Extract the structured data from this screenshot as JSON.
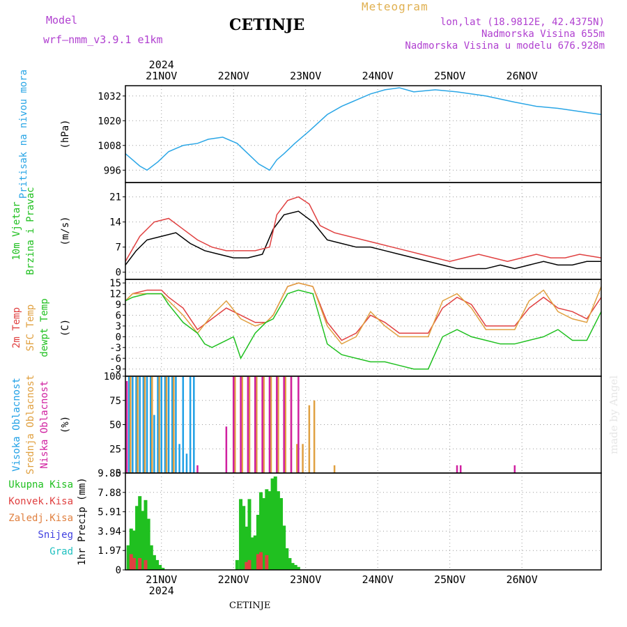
{
  "header": {
    "title": "CETINJE",
    "model_label": "Model",
    "model_name": "wrf—nmm_v3.9.1 e1km",
    "meteogram": "Meteogram",
    "lonlat": "lon,lat (18.9812E, 42.4375N)",
    "altitude": "Nadmorska Visina 655m",
    "model_altitude": "Nadmorska Visina u modelu 676.928m",
    "footer": "CETINJE",
    "signature": "made by Angel"
  },
  "colors": {
    "pressure": "#2aa6e6",
    "wind_speed": "#000000",
    "gust": "#e04040",
    "t2m": "#e04040",
    "sfc": "#e0a040",
    "dew": "#20c020",
    "high_cloud": "#20a0e6",
    "mid_cloud": "#e0a040",
    "low_cloud": "#d020a0",
    "precip_total": "#20c020",
    "precip_conv": "#e04040",
    "label_purple": "#b040d0"
  },
  "chart_data": {
    "type": "meteogram",
    "time_axis": {
      "year": "2024",
      "ticks": [
        "21NOV",
        "22NOV",
        "23NOV",
        "24NOV",
        "25NOV",
        "26NOV"
      ],
      "start_hour": 0,
      "end_hour": 6.6,
      "step_hours": 1
    },
    "panels": [
      {
        "id": "pressure",
        "type": "line",
        "ylabels": [
          {
            "text": "Pritisak na nivou mora",
            "color": "#2aa6e6"
          }
        ],
        "unit": "(hPa)",
        "ylim": [
          990,
          1037
        ],
        "yticks": [
          996,
          1008,
          1020,
          1032
        ],
        "series": [
          {
            "color": "#2aa6e6",
            "x": [
              0,
              0.1,
              0.2,
              0.3,
              0.45,
              0.6,
              0.8,
              1.0,
              1.15,
              1.35,
              1.55,
              1.7,
              1.85,
              2.0,
              2.1,
              2.2,
              2.35,
              2.55,
              2.8,
              3.0,
              3.2,
              3.4,
              3.6,
              3.8,
              4.0,
              4.3,
              4.6,
              5.0,
              5.4,
              5.7,
              6.0,
              6.2,
              6.4,
              6.6
            ],
            "y": [
              1004,
              1001,
              998,
              996,
              1000,
              1005,
              1008,
              1009,
              1011,
              1012,
              1009,
              1004,
              999,
              996,
              1001,
              1004,
              1009,
              1015,
              1023,
              1027,
              1030,
              1033,
              1035,
              1036,
              1034,
              1035,
              1034,
              1032,
              1029,
              1027,
              1026,
              1025,
              1024,
              1023
            ]
          }
        ]
      },
      {
        "id": "wind",
        "type": "line",
        "ylabels": [
          {
            "text": "10m Vjetar",
            "color": "#20c020"
          },
          {
            "text": "Brzina i Pravac",
            "color": "#20c020"
          }
        ],
        "unit": "(m/s)",
        "ylim": [
          -2,
          25
        ],
        "yticks": [
          0,
          7,
          14,
          21
        ],
        "series": [
          {
            "name": "speed",
            "color": "#000000",
            "x": [
              0,
              0.15,
              0.3,
              0.5,
              0.7,
              0.9,
              1.1,
              1.3,
              1.5,
              1.7,
              1.9,
              2.05,
              2.2,
              2.4,
              2.6,
              2.8,
              3.0,
              3.2,
              3.4,
              3.6,
              3.8,
              4.0,
              4.2,
              4.4,
              4.6,
              4.8,
              5.0,
              5.2,
              5.4,
              5.6,
              5.8,
              6.0,
              6.2,
              6.4,
              6.6
            ],
            "y": [
              2,
              6,
              9,
              10,
              11,
              8,
              6,
              5,
              4,
              4,
              5,
              12,
              16,
              17,
              14,
              9,
              8,
              7,
              7,
              6,
              5,
              4,
              3,
              2,
              1,
              1,
              1,
              2,
              1,
              2,
              3,
              2,
              2,
              3,
              3
            ]
          },
          {
            "name": "gust",
            "color": "#e04040",
            "x": [
              0,
              0.2,
              0.4,
              0.6,
              0.8,
              1.0,
              1.2,
              1.4,
              1.6,
              1.8,
              2.0,
              2.1,
              2.25,
              2.4,
              2.55,
              2.7,
              2.9,
              3.1,
              3.3,
              3.5,
              3.7,
              3.9,
              4.1,
              4.3,
              4.5,
              4.7,
              4.9,
              5.1,
              5.3,
              5.5,
              5.7,
              5.9,
              6.1,
              6.3,
              6.6
            ],
            "y": [
              3,
              10,
              14,
              15,
              12,
              9,
              7,
              6,
              6,
              6,
              7,
              16,
              20,
              21,
              19,
              13,
              11,
              10,
              9,
              8,
              7,
              6,
              5,
              4,
              3,
              4,
              5,
              4,
              3,
              4,
              5,
              4,
              4,
              5,
              4
            ]
          }
        ]
      },
      {
        "id": "temp",
        "type": "line",
        "ylabels": [
          {
            "text": "2m Temp",
            "color": "#e04040"
          },
          {
            "text": "SFC Temp",
            "color": "#e0a040"
          },
          {
            "text": "dewpt Temp",
            "color": "#20c020"
          }
        ],
        "unit": "(C)",
        "ylim": [
          -11,
          16
        ],
        "yticks": [
          -9,
          -6,
          -3,
          0,
          3,
          6,
          9,
          12,
          15
        ],
        "series": [
          {
            "name": "2m Temp",
            "color": "#e04040",
            "x": [
              0,
              0.1,
              0.3,
              0.5,
              0.6,
              0.8,
              1.0,
              1.2,
              1.4,
              1.6,
              1.8,
              1.95,
              2.05,
              2.25,
              2.4,
              2.6,
              2.8,
              3.0,
              3.2,
              3.4,
              3.6,
              3.8,
              4.0,
              4.2,
              4.4,
              4.6,
              4.8,
              5.0,
              5.2,
              5.4,
              5.6,
              5.8,
              6.0,
              6.2,
              6.4,
              6.6
            ],
            "y": [
              10,
              12,
              13,
              13,
              11,
              8,
              2,
              5,
              8,
              6,
              4,
              4,
              6,
              14,
              15,
              14,
              4,
              -1,
              1,
              6,
              4,
              1,
              1,
              1,
              8,
              11,
              9,
              3,
              3,
              3,
              8,
              11,
              8,
              7,
              5,
              11
            ]
          },
          {
            "name": "SFC Temp",
            "color": "#e0a040",
            "x": [
              0,
              0.1,
              0.3,
              0.5,
              0.6,
              0.8,
              1.0,
              1.2,
              1.4,
              1.6,
              1.8,
              1.95,
              2.05,
              2.25,
              2.4,
              2.6,
              2.8,
              3.0,
              3.2,
              3.4,
              3.6,
              3.8,
              4.0,
              4.2,
              4.4,
              4.6,
              4.8,
              5.0,
              5.2,
              5.4,
              5.6,
              5.8,
              6.0,
              6.2,
              6.4,
              6.6
            ],
            "y": [
              10,
              12,
              12,
              12,
              10,
              6,
              1,
              6,
              10,
              5,
              3,
              4,
              6,
              14,
              15,
              14,
              3,
              -2,
              0,
              7,
              3,
              0,
              0,
              0,
              10,
              12,
              8,
              2,
              2,
              2,
              10,
              13,
              7,
              5,
              4,
              14
            ]
          },
          {
            "name": "dewpt Temp",
            "color": "#20c020",
            "x": [
              0,
              0.1,
              0.3,
              0.5,
              0.6,
              0.8,
              1.0,
              1.1,
              1.2,
              1.4,
              1.5,
              1.6,
              1.8,
              1.95,
              2.05,
              2.25,
              2.4,
              2.6,
              2.8,
              3.0,
              3.2,
              3.4,
              3.6,
              3.8,
              4.0,
              4.2,
              4.4,
              4.6,
              4.8,
              5.0,
              5.2,
              5.4,
              5.6,
              5.8,
              6.0,
              6.2,
              6.4,
              6.6
            ],
            "y": [
              10,
              11,
              12,
              12,
              9,
              4,
              1,
              -2,
              -3,
              -1,
              0,
              -6,
              1,
              4,
              5,
              12,
              13,
              12,
              -2,
              -5,
              -6,
              -7,
              -7,
              -8,
              -9,
              -9,
              0,
              2,
              0,
              -1,
              -2,
              -2,
              -1,
              0,
              2,
              -1,
              -1,
              7
            ]
          }
        ]
      },
      {
        "id": "cloud",
        "type": "bar",
        "ylabels": [
          {
            "text": "Visoka Oblacnost",
            "color": "#20a0e6"
          },
          {
            "text": "Srednja Oblacnost",
            "color": "#e0a040"
          },
          {
            "text": "Niska Oblacnost",
            "color": "#d020a0"
          }
        ],
        "unit": "(%)",
        "ylim": [
          0,
          100
        ],
        "yticks": [
          0,
          25,
          50,
          75,
          100
        ],
        "series": [
          {
            "name": "high",
            "color": "#20a0e6",
            "x": [
              0.05,
              0.1,
              0.15,
              0.2,
              0.25,
              0.3,
              0.35,
              0.4,
              0.45,
              0.5,
              0.55,
              0.6,
              0.65,
              0.7,
              0.75,
              0.8,
              0.85,
              0.9,
              0.95
            ],
            "y": [
              100,
              100,
              100,
              100,
              100,
              100,
              100,
              60,
              100,
              100,
              100,
              100,
              100,
              100,
              30,
              100,
              20,
              100,
              100
            ]
          },
          {
            "name": "mid",
            "color": "#e0a040",
            "x": [
              0.07,
              0.17,
              0.27,
              0.37,
              0.47,
              0.57,
              0.67,
              1.52,
              1.62,
              1.72,
              1.82,
              1.92,
              2.02,
              2.12,
              2.22,
              2.3,
              2.38,
              2.46,
              2.55,
              2.62,
              2.9
            ],
            "y": [
              100,
              100,
              100,
              100,
              100,
              100,
              100,
              100,
              100,
              100,
              100,
              100,
              100,
              100,
              100,
              100,
              30,
              30,
              70,
              75,
              8
            ]
          },
          {
            "name": "low",
            "color": "#d020a0",
            "x": [
              0.02,
              1.0,
              1.4,
              1.5,
              1.6,
              1.7,
              1.8,
              1.9,
              2.0,
              2.1,
              2.2,
              2.3,
              2.4,
              4.6,
              4.65,
              5.4
            ],
            "y": [
              95,
              8,
              48,
              100,
              100,
              100,
              100,
              100,
              100,
              100,
              100,
              100,
              100,
              8,
              8,
              8
            ]
          }
        ]
      },
      {
        "id": "precip",
        "type": "bar",
        "ylabels_left": [
          {
            "text": "Ukupna Kisa",
            "color": "#20c020"
          },
          {
            "text": "Konvek.Kisa",
            "color": "#e04040"
          },
          {
            "text": "Zaledj.Kisa",
            "color": "#e08040"
          },
          {
            "text": "Snijeg",
            "color": "#4040e0"
          },
          {
            "text": "Grad",
            "color": "#20c0c0"
          }
        ],
        "unit": "1hr Precip (mm)",
        "ylim": [
          0,
          9.85
        ],
        "yticks": [
          0,
          1.97,
          3.94,
          5.91,
          7.88,
          9.85
        ],
        "series": [
          {
            "name": "total",
            "color": "#20c020",
            "x": [
              0.04,
              0.08,
              0.12,
              0.16,
              0.2,
              0.24,
              0.28,
              0.32,
              0.36,
              0.4,
              0.44,
              0.48,
              0.52,
              0.56,
              0.6,
              1.55,
              1.6,
              1.64,
              1.68,
              1.72,
              1.76,
              1.8,
              1.84,
              1.88,
              1.92,
              1.96,
              2.0,
              2.04,
              2.08,
              2.12,
              2.16,
              2.2,
              2.24,
              2.28,
              2.32,
              2.36,
              2.4,
              2.44
            ],
            "y": [
              2.5,
              4.2,
              4.0,
              6.5,
              7.5,
              6.0,
              7.1,
              5.2,
              2.5,
              1.5,
              1.0,
              0.5,
              0.2,
              0.0,
              0.0,
              1.0,
              7.2,
              6.5,
              4.4,
              7.2,
              3.3,
              3.5,
              5.6,
              7.9,
              7.3,
              8.2,
              8.0,
              9.3,
              9.5,
              8.0,
              7.3,
              4.5,
              2.2,
              1.2,
              0.7,
              0.5,
              0.3,
              0.0
            ]
          },
          {
            "name": "conv",
            "color": "#e04040",
            "x": [
              0.08,
              0.12,
              0.2,
              0.28,
              1.68,
              1.72,
              1.84,
              1.88,
              1.96
            ],
            "y": [
              1.6,
              1.2,
              1.2,
              1.0,
              0.8,
              1.0,
              1.6,
              1.8,
              1.5
            ]
          }
        ]
      }
    ]
  }
}
